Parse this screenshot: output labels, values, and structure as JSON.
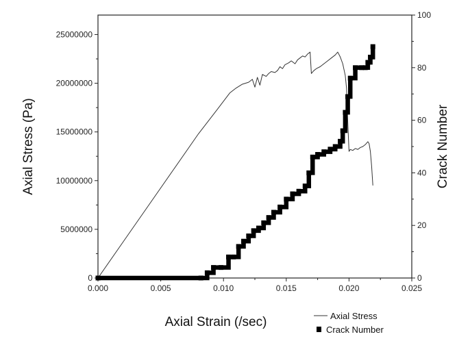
{
  "chart_data": {
    "type": "line",
    "xlabel": "Axial Strain (/sec)",
    "ylabel": "Axial Stress  (Pa)",
    "y2label": "Crack Number",
    "xlim": [
      0.0,
      0.025
    ],
    "ylim": [
      0,
      27000000
    ],
    "y2lim": [
      0,
      100
    ],
    "x_ticks": [
      "0.000",
      "0.005",
      "0.010",
      "0.015",
      "0.020",
      "0.025"
    ],
    "y_ticks": [
      "0",
      "5000000",
      "10000000",
      "15000000",
      "20000000",
      "25000000"
    ],
    "y2_ticks": [
      "0",
      "20",
      "40",
      "60",
      "80",
      "100"
    ],
    "grid": false,
    "legend_position": "bottom-right",
    "series": [
      {
        "name": "Axial Stress",
        "axis": "left",
        "style": "thin-line",
        "color": "#333333",
        "x": [
          0.0,
          0.002,
          0.004,
          0.006,
          0.008,
          0.0095,
          0.0105,
          0.011,
          0.0115,
          0.012,
          0.0123,
          0.0125,
          0.0127,
          0.0129,
          0.0131,
          0.0134,
          0.0136,
          0.0138,
          0.0141,
          0.0143,
          0.0145,
          0.0147,
          0.0149,
          0.0152,
          0.0154,
          0.0157,
          0.0159,
          0.0161,
          0.0163,
          0.0165,
          0.0167,
          0.0169,
          0.017,
          0.0172,
          0.0174,
          0.0177,
          0.018,
          0.0183,
          0.0186,
          0.0189,
          0.0191,
          0.0193,
          0.0195,
          0.0197,
          0.0198,
          0.0199,
          0.02,
          0.0201,
          0.0203,
          0.0205,
          0.0207,
          0.0209,
          0.0211,
          0.0213,
          0.0215,
          0.0216,
          0.0217,
          0.0218,
          0.0219
        ],
        "y": [
          0,
          3700000,
          7400000,
          11100000,
          14800000,
          17300000,
          19000000,
          19500000,
          19900000,
          20100000,
          20400000,
          19600000,
          20600000,
          19800000,
          20900000,
          20700000,
          21000000,
          21200000,
          21100000,
          21300000,
          21700000,
          21500000,
          21900000,
          22100000,
          22300000,
          22000000,
          22400000,
          22600000,
          22800000,
          22700000,
          23000000,
          23200000,
          21000000,
          21300000,
          21500000,
          21700000,
          22000000,
          22300000,
          22600000,
          22900000,
          23200000,
          22700000,
          22000000,
          20800000,
          19500000,
          16000000,
          13000000,
          13200000,
          13100000,
          13300000,
          13200000,
          13400000,
          13500000,
          13700000,
          14000000,
          13800000,
          13000000,
          11500000,
          9500000
        ]
      },
      {
        "name": "Crack Number",
        "axis": "right",
        "style": "thick-step",
        "color": "#000000",
        "x": [
          0.0,
          0.0082,
          0.0087,
          0.0092,
          0.0098,
          0.0104,
          0.0108,
          0.0112,
          0.0116,
          0.012,
          0.0124,
          0.0128,
          0.0132,
          0.0136,
          0.014,
          0.0145,
          0.015,
          0.0155,
          0.016,
          0.0165,
          0.0168,
          0.0171,
          0.0175,
          0.018,
          0.0185,
          0.0189,
          0.0193,
          0.0195,
          0.0197,
          0.0199,
          0.0201,
          0.0205,
          0.021,
          0.0213,
          0.0215,
          0.0217,
          0.0219
        ],
        "y": [
          0,
          0,
          2,
          4,
          4,
          8,
          8,
          12,
          14,
          16,
          18,
          19,
          21,
          23,
          25,
          27,
          30,
          32,
          33,
          35,
          40,
          46,
          47,
          48,
          49,
          50,
          52,
          56,
          63,
          69,
          76,
          80,
          80,
          80,
          82,
          84,
          88
        ]
      }
    ]
  }
}
